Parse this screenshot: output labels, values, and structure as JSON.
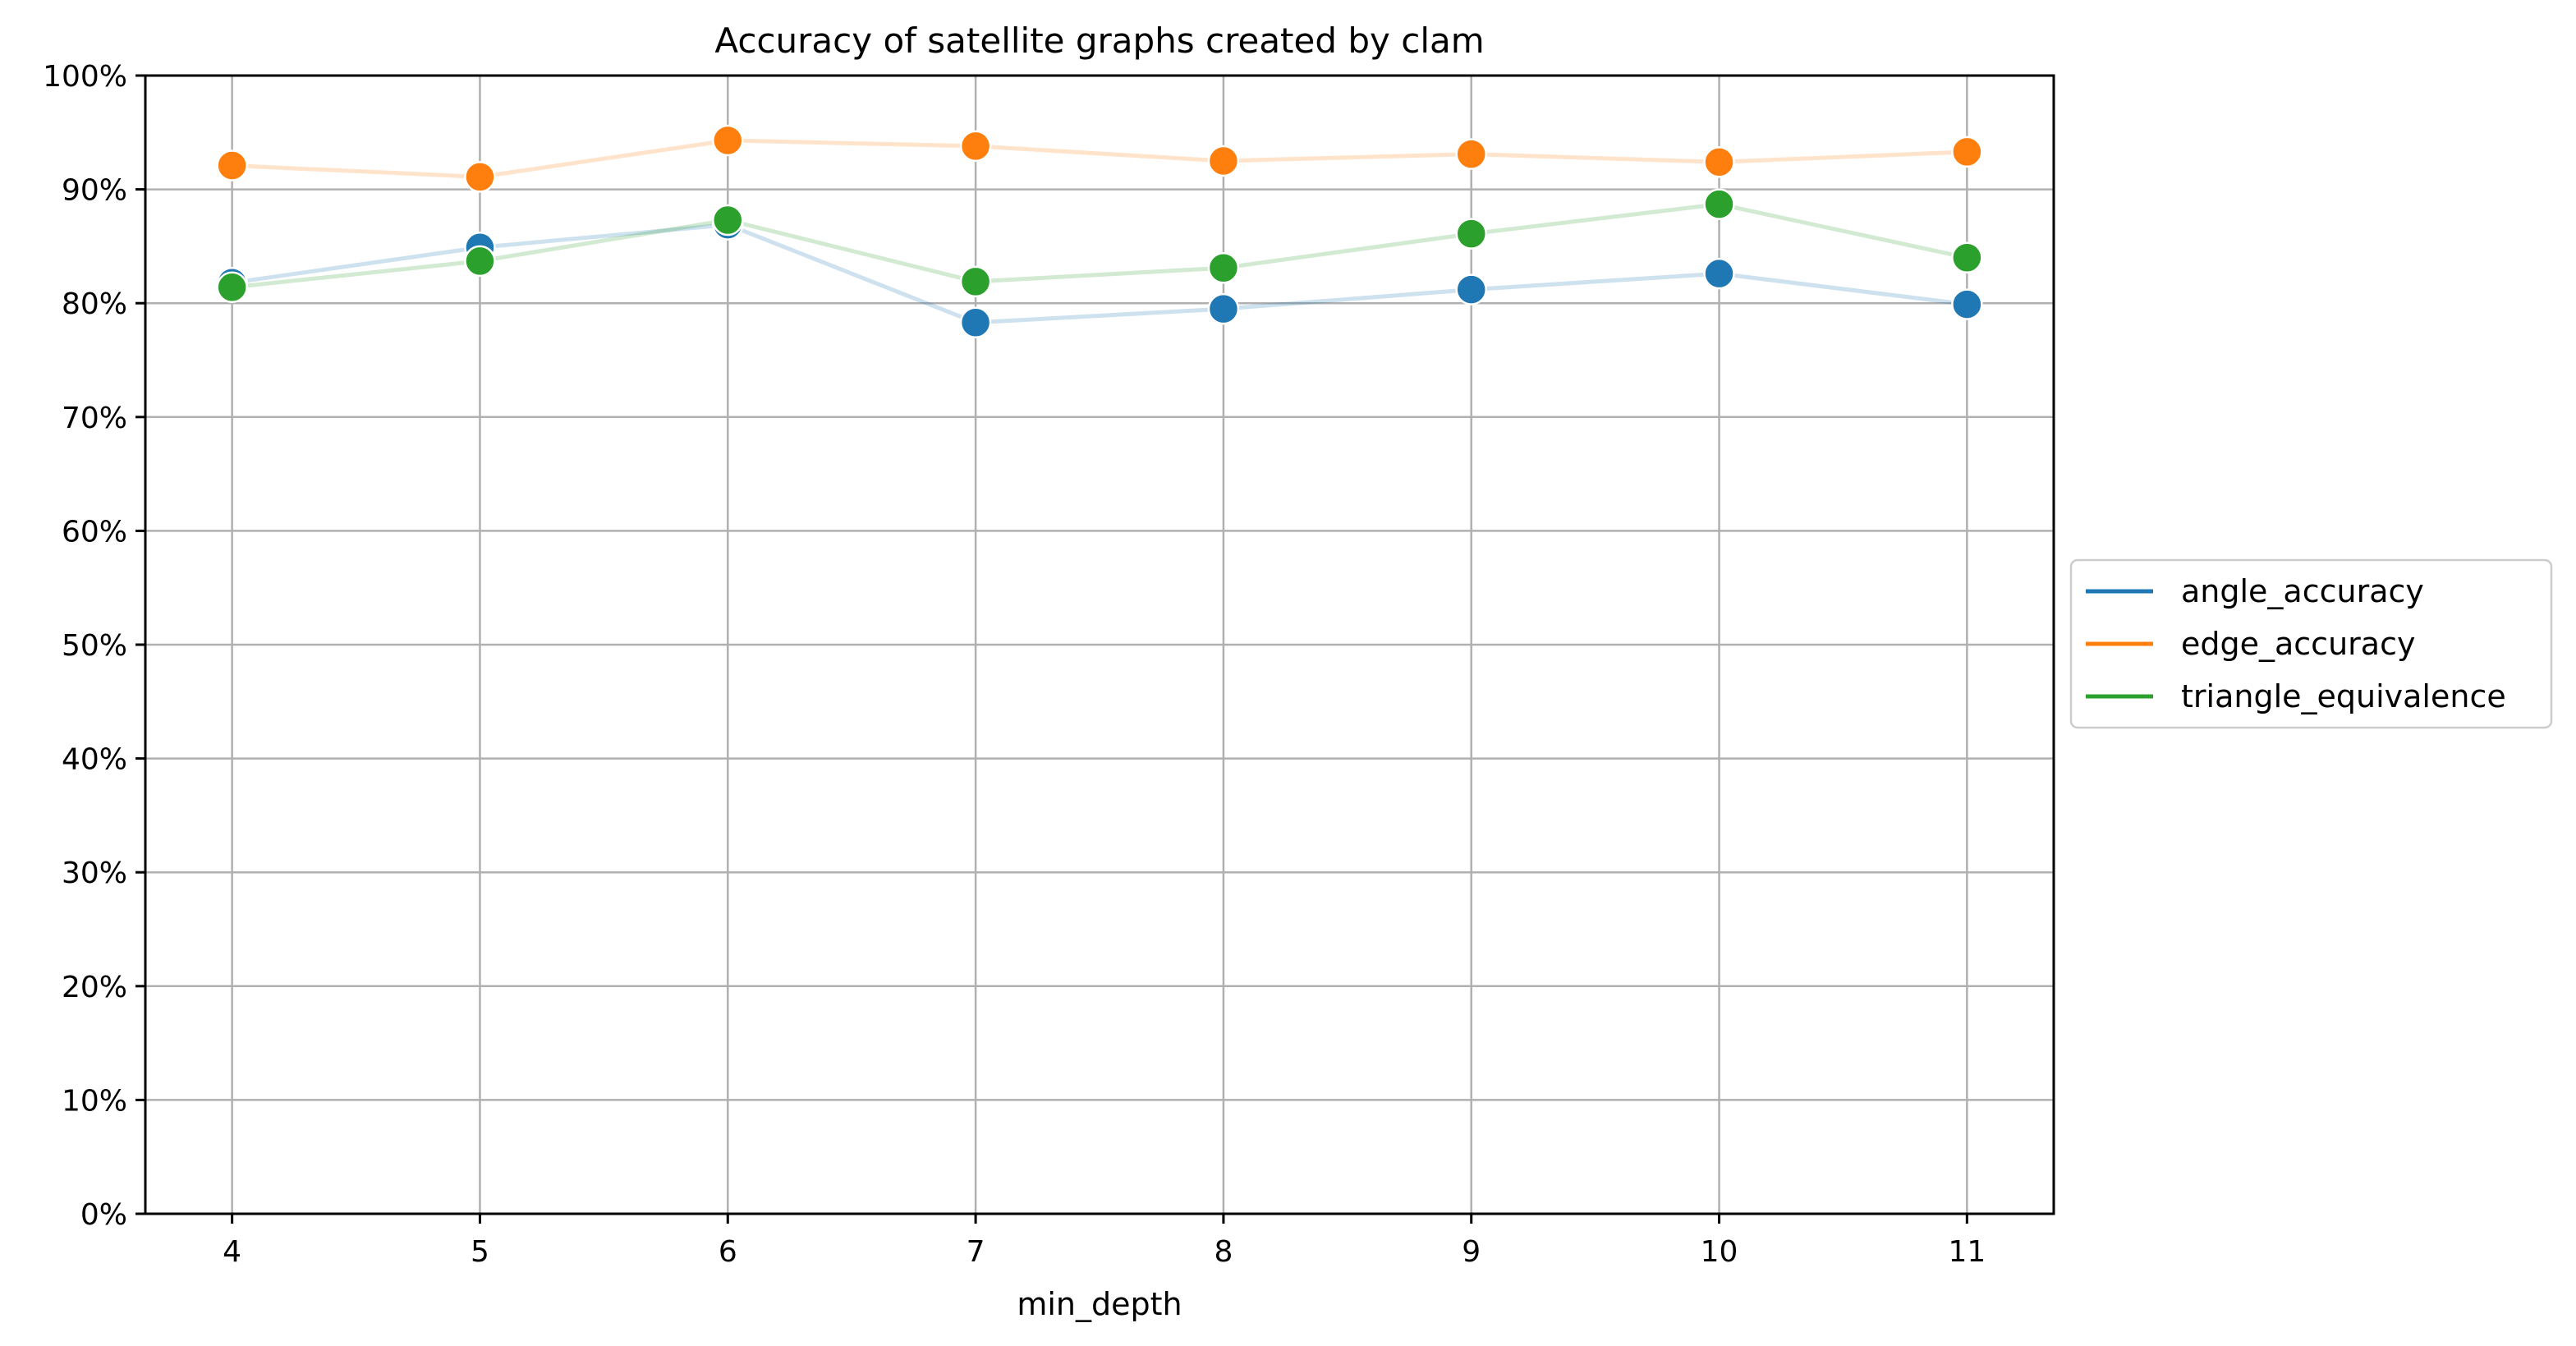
{
  "chart_data": {
    "type": "line",
    "title": "Accuracy of satellite graphs created by clam",
    "xlabel": "min_depth",
    "ylabel": "",
    "x": [
      4,
      5,
      6,
      7,
      8,
      9,
      10,
      11
    ],
    "xlim": [
      3.65,
      11.35
    ],
    "ylim": [
      0,
      1
    ],
    "yticks": [
      0,
      0.1,
      0.2,
      0.3,
      0.4,
      0.5,
      0.6,
      0.7,
      0.8,
      0.9,
      1.0
    ],
    "ytick_labels": [
      "0%",
      "10%",
      "20%",
      "30%",
      "40%",
      "50%",
      "60%",
      "70%",
      "80%",
      "90%",
      "100%"
    ],
    "xtick_labels": [
      "4",
      "5",
      "6",
      "7",
      "8",
      "9",
      "10",
      "11"
    ],
    "grid": true,
    "legend_position": "center-right outside",
    "series": [
      {
        "name": "angle_accuracy",
        "color": "#1f77b4",
        "values": [
          0.818,
          0.849,
          0.869,
          0.783,
          0.795,
          0.812,
          0.826,
          0.799
        ]
      },
      {
        "name": "edge_accuracy",
        "color": "#ff7f0e",
        "values": [
          0.921,
          0.911,
          0.943,
          0.938,
          0.925,
          0.931,
          0.924,
          0.933
        ]
      },
      {
        "name": "triangle_equivalence",
        "color": "#2ca02c",
        "values": [
          0.814,
          0.837,
          0.873,
          0.819,
          0.831,
          0.861,
          0.887,
          0.84
        ]
      }
    ]
  }
}
